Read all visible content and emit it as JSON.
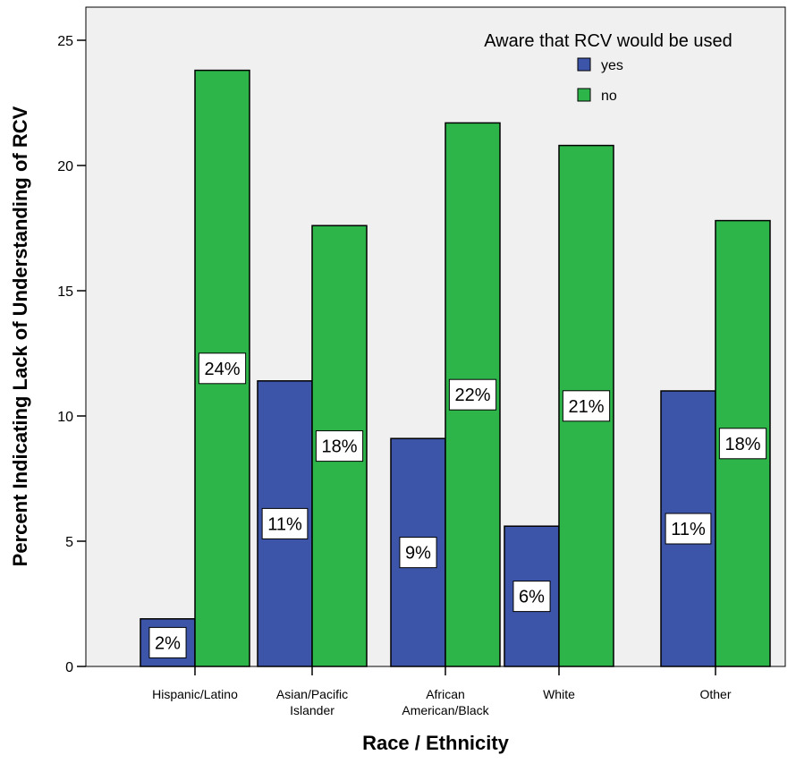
{
  "chart_data": {
    "type": "bar",
    "title": "",
    "xlabel": "Race / Ethnicity",
    "ylabel": "Percent Indicating Lack of Understanding of RCV",
    "ylim": [
      0,
      26
    ],
    "yticks": [
      0,
      5,
      10,
      15,
      20,
      25
    ],
    "grid": false,
    "legend": {
      "title": "Aware that RCV would be used",
      "placement": "top-right"
    },
    "categories": [
      "Hispanic/Latino",
      "Asian/Pacific Islander",
      "African American/Black",
      "White",
      "Other"
    ],
    "category_label_lines": [
      [
        "Hispanic/Latino"
      ],
      [
        "Asian/Pacific",
        "Islander"
      ],
      [
        "African",
        "American/Black"
      ],
      [
        "White"
      ],
      [
        "Other"
      ]
    ],
    "series": [
      {
        "name": "yes",
        "color": "#3d55a8",
        "values": [
          1.9,
          11.4,
          9.1,
          5.6,
          11.0
        ],
        "labels": [
          "2%",
          "11%",
          "9%",
          "6%",
          "11%"
        ]
      },
      {
        "name": "no",
        "color": "#2db54a",
        "values": [
          23.8,
          17.6,
          21.7,
          20.8,
          17.8
        ],
        "labels": [
          "24%",
          "18%",
          "22%",
          "21%",
          "18%"
        ]
      }
    ],
    "colors": {
      "plot_background": "#f0f0f0",
      "bar_outline": "#000000"
    }
  }
}
